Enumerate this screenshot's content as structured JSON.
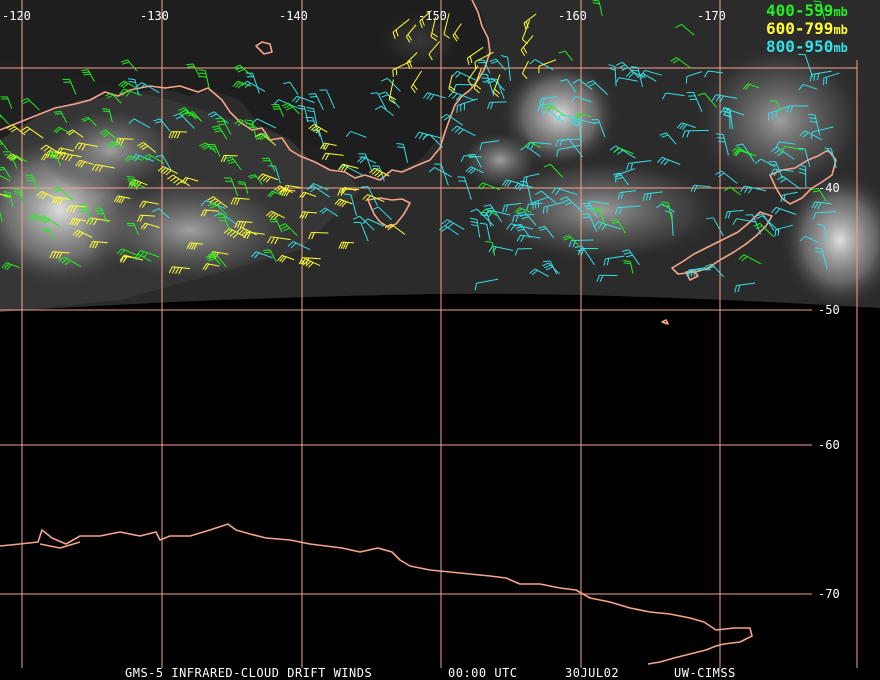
{
  "legend": {
    "items": [
      {
        "range": "400-599",
        "unit": "mb",
        "color": "#22ee22"
      },
      {
        "range": "600-799",
        "unit": "mb",
        "color": "#ffff33"
      },
      {
        "range": "800-950",
        "unit": "mb",
        "color": "#33e0e6"
      }
    ]
  },
  "longitude_labels": [
    "-120",
    "-130",
    "-140",
    "-150",
    "-160",
    "-170"
  ],
  "latitude_labels": [
    "-40",
    "-50",
    "-60",
    "-70"
  ],
  "footer": {
    "product": "GMS-5 INFRARED-CLOUD DRIFT WINDS",
    "time": "00:00 UTC",
    "date": "30JUL02",
    "source": "UW-CIMSS"
  },
  "colors": {
    "grid": "#f5a58a",
    "coast": "#f5a58a",
    "level_400_599": "#22ee22",
    "level_600_799": "#ffff33",
    "level_800_950": "#33e0e6"
  }
}
